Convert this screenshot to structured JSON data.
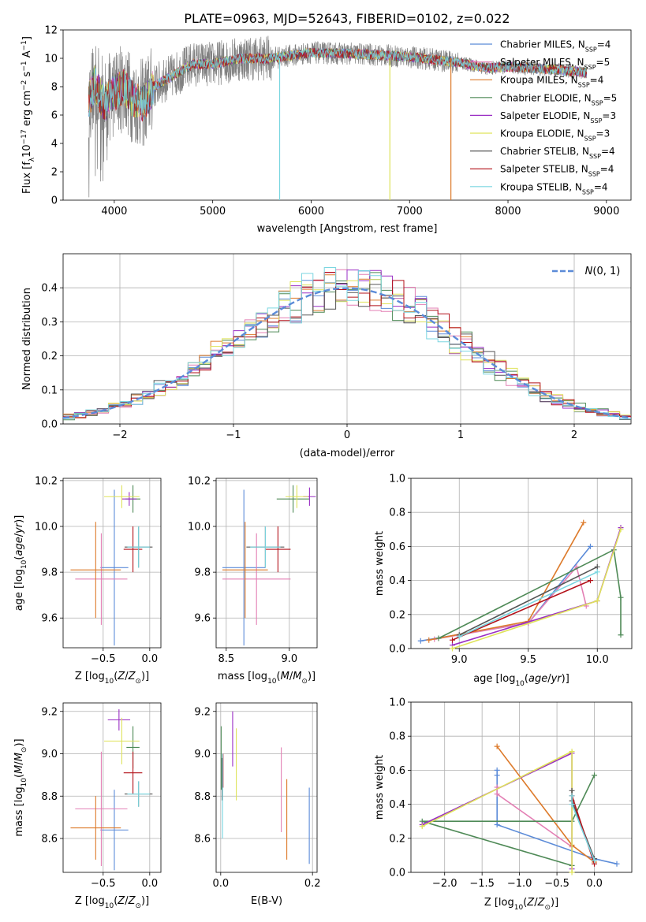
{
  "title": "PLATE=0963, MJD=52643, FIBERID=0102, z=0.022",
  "colors": {
    "Chabrier MILES": "#5b8bd8",
    "Salpeter MILES": "#e37fb4",
    "Kroupa MILES": "#dd7a2a",
    "Chabrier ELODIE": "#4f8a57",
    "Salpeter ELODIE": "#9a2ec4",
    "Kroupa ELODIE": "#dfe35a",
    "Chabrier STELIB": "#555555",
    "Salpeter STELIB": "#b3121a",
    "Kroupa STELIB": "#7ad6e0"
  },
  "chart_data": [
    {
      "id": "spectrum",
      "type": "line",
      "xlabel": "wavelength [Angstrom, rest frame]",
      "ylabel": "Flux [f_λ10^-17 erg cm^-2 s^-1 A^-1]",
      "xlim": [
        3480,
        9250
      ],
      "ylim": [
        0,
        12
      ],
      "xticks": [
        "4000",
        "5000",
        "6000",
        "7000",
        "8000",
        "9000"
      ],
      "yticks": [
        "0",
        "2",
        "4",
        "6",
        "8",
        "10",
        "12"
      ],
      "observed_color": "#808080",
      "observed_profile": {
        "x": [
          3740,
          3800,
          3900,
          4000,
          4100,
          4200,
          4300,
          4400,
          4600,
          4800,
          5000,
          5300,
          5600,
          6000,
          6500,
          7000,
          7500,
          7800,
          8000,
          8500,
          8800
        ],
        "y": [
          7.0,
          8.2,
          6.8,
          7.6,
          8.0,
          7.0,
          6.8,
          8.0,
          8.8,
          9.6,
          9.6,
          10.0,
          10.0,
          10.4,
          10.3,
          10.1,
          9.7,
          9.3,
          9.4,
          9.2,
          9.0
        ]
      },
      "model_cutoffs_x": [
        5680,
        6800,
        7420
      ],
      "legend": [
        {
          "label": "Chabrier MILES, N",
          "sub": "SSP",
          "suffix": "=4"
        },
        {
          "label": "Salpeter MILES, N",
          "sub": "SSP",
          "suffix": "=5"
        },
        {
          "label": "Kroupa MILES, N",
          "sub": "SSP",
          "suffix": "=4"
        },
        {
          "label": "Chabrier ELODIE, N",
          "sub": "SSP",
          "suffix": "=5"
        },
        {
          "label": "Salpeter ELODIE, N",
          "sub": "SSP",
          "suffix": "=3"
        },
        {
          "label": "Kroupa ELODIE, N",
          "sub": "SSP",
          "suffix": "=3"
        },
        {
          "label": "Chabrier STELIB, N",
          "sub": "SSP",
          "suffix": "=4"
        },
        {
          "label": "Salpeter STELIB, N",
          "sub": "SSP",
          "suffix": "=4"
        },
        {
          "label": "Kroupa STELIB, N",
          "sub": "SSP",
          "suffix": "=4"
        }
      ]
    },
    {
      "id": "residuals",
      "type": "bar",
      "xlabel": "(data-model)/error",
      "ylabel": "Normed distribution",
      "xlim": [
        -2.5,
        2.5
      ],
      "ylim": [
        0,
        0.5
      ],
      "xticks": [
        "−2",
        "−1",
        "0",
        "1",
        "2"
      ],
      "yticks": [
        "0.0",
        "0.1",
        "0.2",
        "0.3",
        "0.4"
      ],
      "grid": true,
      "legend_label": "N(0,1)",
      "bin_width": 0.1,
      "reference": "standard normal density"
    },
    {
      "id": "age-vs-Z",
      "type": "scatter",
      "xlabel": "Z [log10(Z/Z⊙)]",
      "ylabel": "age [log10(age/yr)]",
      "xlim": [
        -0.93,
        0.12
      ],
      "ylim": [
        9.47,
        10.21
      ],
      "xticks": [
        "−0.5",
        "0.0"
      ],
      "yticks": [
        "9.6",
        "9.8",
        "10.0",
        "10.2"
      ],
      "grid": true,
      "points": [
        {
          "model": "Chabrier MILES",
          "x": -0.38,
          "xerr": 0.15,
          "y": 9.82,
          "yerr": 0.34
        },
        {
          "model": "Salpeter MILES",
          "x": -0.52,
          "xerr": 0.28,
          "y": 9.77,
          "yerr": 0.2
        },
        {
          "model": "Kroupa MILES",
          "x": -0.58,
          "xerr": 0.27,
          "y": 9.81,
          "yerr": 0.21
        },
        {
          "model": "Chabrier ELODIE",
          "x": -0.18,
          "xerr": 0.08,
          "y": 10.12,
          "yerr": 0.06
        },
        {
          "model": "Salpeter ELODIE",
          "x": -0.22,
          "xerr": 0.08,
          "y": 10.12,
          "yerr": 0.03
        },
        {
          "model": "Kroupa ELODIE",
          "x": -0.3,
          "xerr": 0.19,
          "y": 10.13,
          "yerr": 0.05
        },
        {
          "model": "Chabrier STELIB",
          "x": -0.12,
          "xerr": 0.15,
          "y": 9.91,
          "yerr": 0.09
        },
        {
          "model": "Salpeter STELIB",
          "x": -0.18,
          "xerr": 0.1,
          "y": 9.9,
          "yerr": 0.1
        },
        {
          "model": "Kroupa STELIB",
          "x": -0.12,
          "xerr": 0.12,
          "y": 9.91,
          "yerr": 0.09
        }
      ]
    },
    {
      "id": "age-vs-mass",
      "type": "scatter",
      "xlabel": "mass [log10(M/M⊙)]",
      "ylabel": "",
      "xlim": [
        8.42,
        9.22
      ],
      "ylim": [
        9.47,
        10.21
      ],
      "xticks": [
        "8.5",
        "9.0"
      ],
      "yticks": [
        "9.6",
        "9.8",
        "10.0",
        "10.2"
      ],
      "grid": true,
      "points": [
        {
          "model": "Chabrier MILES",
          "x": 8.64,
          "xerr": 0.17,
          "y": 9.82,
          "yerr": 0.34
        },
        {
          "model": "Salpeter MILES",
          "x": 8.74,
          "xerr": 0.27,
          "y": 9.77,
          "yerr": 0.2
        },
        {
          "model": "Kroupa MILES",
          "x": 8.65,
          "xerr": 0.18,
          "y": 9.81,
          "yerr": 0.21
        },
        {
          "model": "Chabrier ELODIE",
          "x": 9.03,
          "xerr": 0.13,
          "y": 10.12,
          "yerr": 0.06
        },
        {
          "model": "Salpeter ELODIE",
          "x": 9.16,
          "xerr": 0.05,
          "y": 10.13,
          "yerr": 0.04
        },
        {
          "model": "Kroupa ELODIE",
          "x": 9.06,
          "xerr": 0.09,
          "y": 10.13,
          "yerr": 0.05
        },
        {
          "model": "Chabrier STELIB",
          "x": 8.81,
          "xerr": 0.15,
          "y": 9.91,
          "yerr": 0.09
        },
        {
          "model": "Salpeter STELIB",
          "x": 8.91,
          "xerr": 0.1,
          "y": 9.9,
          "yerr": 0.1
        },
        {
          "model": "Kroupa STELIB",
          "x": 8.81,
          "xerr": 0.12,
          "y": 9.91,
          "yerr": 0.09
        }
      ]
    },
    {
      "id": "weight-vs-age",
      "type": "line",
      "xlabel": "age [log10(age/yr)]",
      "ylabel": "mass weight",
      "xlim": [
        8.65,
        10.25
      ],
      "ylim": [
        0,
        1
      ],
      "xticks": [
        "9.0",
        "9.5",
        "10.0"
      ],
      "yticks": [
        "0.0",
        "0.2",
        "0.4",
        "0.6",
        "0.8",
        "1.0"
      ],
      "grid": true,
      "series": [
        {
          "model": "Chabrier MILES",
          "x": [
            8.72,
            9.5,
            9.95
          ],
          "y": [
            0.045,
            0.15,
            0.6
          ]
        },
        {
          "model": "Salpeter MILES",
          "x": [
            8.82,
            9.5,
            9.85,
            9.92
          ],
          "y": [
            0.055,
            0.15,
            0.48,
            0.25
          ]
        },
        {
          "model": "Kroupa MILES",
          "x": [
            8.78,
            9.5,
            9.9
          ],
          "y": [
            0.05,
            0.16,
            0.74
          ]
        },
        {
          "model": "Chabrier ELODIE",
          "x": [
            8.85,
            10.12,
            10.17,
            10.17
          ],
          "y": [
            0.06,
            0.58,
            0.3,
            0.08
          ]
        },
        {
          "model": "Salpeter ELODIE",
          "x": [
            8.95,
            10.0,
            10.17
          ],
          "y": [
            0.02,
            0.28,
            0.71
          ]
        },
        {
          "model": "Kroupa ELODIE",
          "x": [
            8.95,
            10.0,
            10.17
          ],
          "y": [
            0.0,
            0.28,
            0.7
          ]
        },
        {
          "model": "Chabrier STELIB",
          "x": [
            9.0,
            10.0
          ],
          "y": [
            0.08,
            0.48
          ]
        },
        {
          "model": "Salpeter STELIB",
          "x": [
            8.95,
            9.95
          ],
          "y": [
            0.05,
            0.4
          ]
        },
        {
          "model": "Kroupa STELIB",
          "x": [
            9.0,
            10.0
          ],
          "y": [
            0.07,
            0.45
          ]
        }
      ]
    },
    {
      "id": "mass-vs-Z",
      "type": "scatter",
      "xlabel": "Z [log10(Z/Z⊙)]",
      "ylabel": "mass [log10(M/M⊙)]",
      "xlim": [
        -0.93,
        0.12
      ],
      "ylim": [
        8.44,
        9.24
      ],
      "xticks": [
        "−0.5",
        "0.0"
      ],
      "yticks": [
        "8.6",
        "8.8",
        "9.0",
        "9.2"
      ],
      "grid": true,
      "points": [
        {
          "model": "Chabrier MILES",
          "x": -0.38,
          "xerr": 0.15,
          "y": 8.64,
          "yerr": 0.19
        },
        {
          "model": "Salpeter MILES",
          "x": -0.52,
          "xerr": 0.28,
          "y": 8.74,
          "yerr": 0.27
        },
        {
          "model": "Kroupa MILES",
          "x": -0.58,
          "xerr": 0.27,
          "y": 8.65,
          "yerr": 0.15
        },
        {
          "model": "Chabrier ELODIE",
          "x": -0.18,
          "xerr": 0.07,
          "y": 9.03,
          "yerr": 0.1
        },
        {
          "model": "Salpeter ELODIE",
          "x": -0.33,
          "xerr": 0.12,
          "y": 9.16,
          "yerr": 0.05
        },
        {
          "model": "Kroupa ELODIE",
          "x": -0.3,
          "xerr": 0.19,
          "y": 9.06,
          "yerr": 0.11
        },
        {
          "model": "Chabrier STELIB",
          "x": -0.12,
          "xerr": 0.15,
          "y": 8.81,
          "yerr": 0.06
        },
        {
          "model": "Salpeter STELIB",
          "x": -0.18,
          "xerr": 0.1,
          "y": 8.91,
          "yerr": 0.1
        },
        {
          "model": "Kroupa STELIB",
          "x": -0.12,
          "xerr": 0.12,
          "y": 8.81,
          "yerr": 0.06
        }
      ]
    },
    {
      "id": "mass-vs-EBV",
      "type": "scatter",
      "xlabel": "E(B-V)",
      "ylabel": "",
      "xlim": [
        -0.01,
        0.21
      ],
      "ylim": [
        8.44,
        9.24
      ],
      "xticks": [
        "0.0",
        "0.2"
      ],
      "yticks": [
        "8.6",
        "8.8",
        "9.0",
        "9.2"
      ],
      "grid": true,
      "points": [
        {
          "model": "Chabrier MILES",
          "x": 0.193,
          "y": 8.66,
          "yerr": 0.18
        },
        {
          "model": "Salpeter MILES",
          "x": 0.132,
          "y": 8.83,
          "yerr": 0.2
        },
        {
          "model": "Kroupa MILES",
          "x": 0.144,
          "y": 8.69,
          "yerr": 0.19
        },
        {
          "model": "Chabrier ELODIE",
          "x": 0.001,
          "y": 8.98,
          "yerr": 0.15
        },
        {
          "model": "Salpeter ELODIE",
          "x": 0.026,
          "y": 9.07,
          "yerr": 0.13
        },
        {
          "model": "Kroupa ELODIE",
          "x": 0.034,
          "y": 8.95,
          "yerr": 0.17
        },
        {
          "model": "Chabrier STELIB",
          "x": 0.003,
          "y": 8.88,
          "yerr": 0.1
        },
        {
          "model": "Salpeter STELIB",
          "x": 0.005,
          "y": 8.92,
          "yerr": 0.08
        },
        {
          "model": "Kroupa STELIB",
          "x": 0.004,
          "y": 8.8,
          "yerr": 0.2
        }
      ]
    },
    {
      "id": "weight-vs-Z",
      "type": "line",
      "xlabel": "Z [log10(Z/Z⊙)]",
      "ylabel": "mass weight",
      "xlim": [
        -2.45,
        0.5
      ],
      "ylim": [
        0,
        1
      ],
      "xticks": [
        "−2.0",
        "−1.5",
        "−1.0",
        "−0.5",
        "0.0"
      ],
      "yticks": [
        "0.0",
        "0.2",
        "0.4",
        "0.6",
        "0.8",
        "1.0"
      ],
      "grid": true,
      "series": [
        {
          "model": "Chabrier MILES",
          "x": [
            -1.3,
            -1.3,
            -1.3,
            0.0,
            0.3
          ],
          "y": [
            0.6,
            0.57,
            0.28,
            0.08,
            0.05
          ]
        },
        {
          "model": "Salpeter MILES",
          "x": [
            -1.3,
            -1.3,
            -0.3
          ],
          "y": [
            0.5,
            0.46,
            0.15
          ]
        },
        {
          "model": "Kroupa MILES",
          "x": [
            -1.3,
            -0.3,
            0.0
          ],
          "y": [
            0.74,
            0.16,
            0.06
          ]
        },
        {
          "model": "Chabrier ELODIE",
          "x": [
            0.0,
            -0.3,
            -2.3,
            -0.3
          ],
          "y": [
            0.57,
            0.3,
            0.3,
            0.04
          ]
        },
        {
          "model": "Salpeter ELODIE",
          "x": [
            -2.3,
            -0.3,
            -0.3
          ],
          "y": [
            0.28,
            0.7,
            0.02
          ]
        },
        {
          "model": "Kroupa ELODIE",
          "x": [
            -2.3,
            -0.3,
            -0.3
          ],
          "y": [
            0.27,
            0.71,
            0.0
          ]
        },
        {
          "model": "Chabrier STELIB",
          "x": [
            -0.3,
            -0.3,
            0.0
          ],
          "y": [
            0.48,
            0.42,
            0.08
          ]
        },
        {
          "model": "Salpeter STELIB",
          "x": [
            -0.3,
            0.0
          ],
          "y": [
            0.45,
            0.05
          ]
        },
        {
          "model": "Kroupa STELIB",
          "x": [
            -0.3,
            -0.3,
            0.0
          ],
          "y": [
            0.45,
            0.4,
            0.07
          ]
        }
      ]
    }
  ]
}
